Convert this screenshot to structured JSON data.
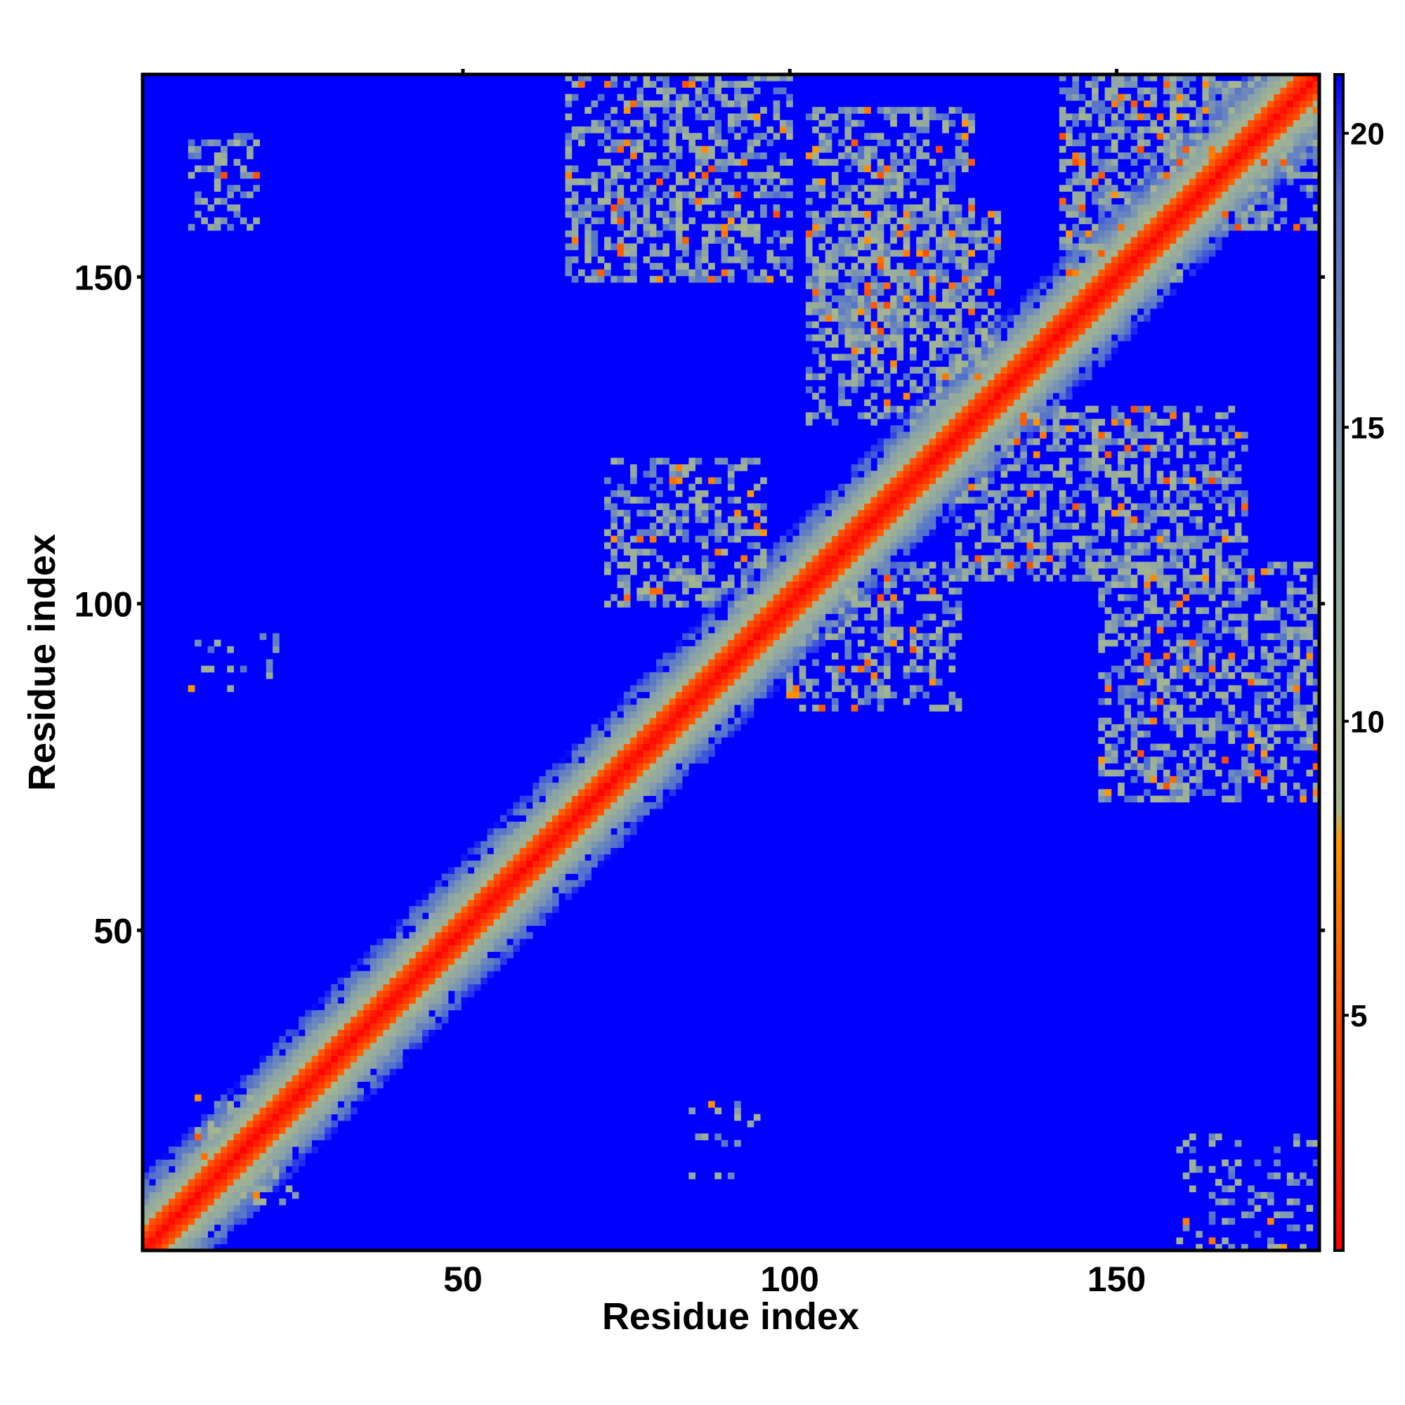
{
  "chart_data": {
    "type": "heatmap",
    "title": "",
    "xlabel": "Residue index",
    "ylabel": "Residue index",
    "n_residues": 181,
    "xlim": [
      1,
      181
    ],
    "ylim": [
      1,
      181
    ],
    "x_ticks": [
      50,
      100,
      150
    ],
    "y_ticks": [
      50,
      100,
      150
    ],
    "colorbar": {
      "range": [
        1,
        21
      ],
      "ticks": [
        5,
        10,
        15,
        20
      ],
      "colors": [
        {
          "value": 1,
          "color": "#ff0000"
        },
        {
          "value": 5,
          "color": "#ff4a00"
        },
        {
          "value": 8,
          "color": "#ff9900"
        },
        {
          "value": 8.5,
          "color": "#a8b88c"
        },
        {
          "value": 14,
          "color": "#8aa2a8"
        },
        {
          "value": 19,
          "color": "#4f6ecf"
        },
        {
          "value": 21,
          "color": "#0000ff"
        }
      ]
    },
    "background_value": 21,
    "diagonal_band": {
      "core_halfwidth": 3,
      "mid_halfwidth": 7,
      "outer_halfwidth": 11
    },
    "contact_blocks": [
      {
        "x": [
          8,
          18
        ],
        "y": [
          158,
          172
        ],
        "density": 0.35
      },
      {
        "x": [
          66,
          100
        ],
        "y": [
          150,
          182
        ],
        "density": 0.45
      },
      {
        "x": [
          103,
          128
        ],
        "y": [
          140,
          176
        ],
        "density": 0.45
      },
      {
        "x": [
          103,
          132
        ],
        "y": [
          128,
          160
        ],
        "density": 0.4
      },
      {
        "x": [
          142,
          160
        ],
        "y": [
          150,
          182
        ],
        "density": 0.5
      },
      {
        "x": [
          158,
          181
        ],
        "y": [
          158,
          182
        ],
        "density": 0.5
      },
      {
        "x": [
          72,
          96
        ],
        "y": [
          100,
          122
        ],
        "density": 0.4
      },
      {
        "x": [
          100,
          126
        ],
        "y": [
          84,
          106
        ],
        "density": 0.4
      },
      {
        "x": [
          126,
          170
        ],
        "y": [
          104,
          130
        ],
        "density": 0.45
      },
      {
        "x": [
          148,
          181
        ],
        "y": [
          70,
          106
        ],
        "density": 0.45
      },
      {
        "x": [
          9,
          24
        ],
        "y": [
          8,
          24
        ],
        "density": 0.35
      },
      {
        "x": [
          160,
          181
        ],
        "y": [
          1,
          18
        ],
        "density": 0.2
      },
      {
        "x": [
          85,
          95
        ],
        "y": [
          12,
          23
        ],
        "density": 0.1
      },
      {
        "x": [
          8,
          23
        ],
        "y": [
          87,
          95
        ],
        "density": 0.1
      }
    ]
  }
}
